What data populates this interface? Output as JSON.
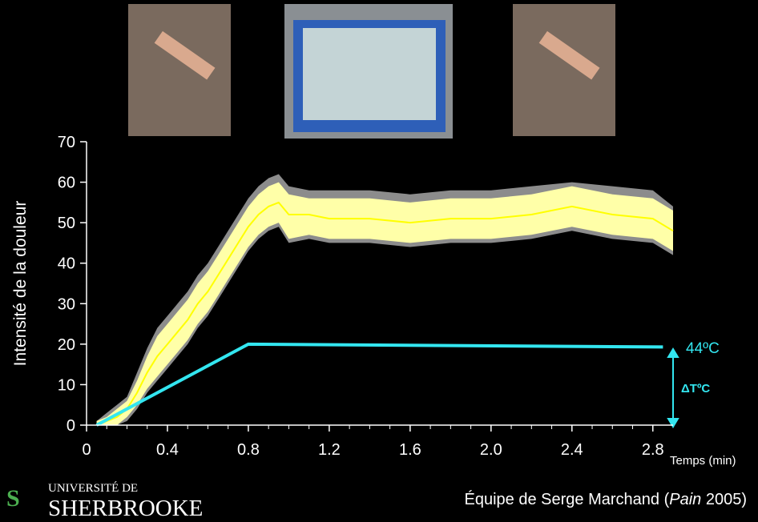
{
  "chart_data": {
    "type": "line",
    "y_label": "Intensité de la douleur",
    "x_label": "Temps (min)",
    "x": [
      0.05,
      0.1,
      0.15,
      0.2,
      0.25,
      0.3,
      0.35,
      0.4,
      0.45,
      0.5,
      0.55,
      0.6,
      0.65,
      0.7,
      0.75,
      0.8,
      0.85,
      0.9,
      0.95,
      1.0,
      1.1,
      1.2,
      1.4,
      1.6,
      1.8,
      2.0,
      2.2,
      2.4,
      2.6,
      2.8,
      2.9
    ],
    "bands": [
      {
        "color": "#8c8c8c",
        "upper": [
          1,
          3,
          5,
          7,
          13,
          19,
          24,
          27,
          30,
          33,
          37,
          40,
          44,
          48,
          52,
          56,
          59,
          61,
          62,
          59,
          58,
          58,
          58,
          57,
          58,
          58,
          59,
          60,
          59,
          58,
          54
        ],
        "lower": [
          0,
          0,
          0,
          1,
          4,
          8,
          11,
          14,
          17,
          20,
          24,
          27,
          31,
          35,
          39,
          43,
          46,
          48,
          49,
          45,
          46,
          45,
          45,
          44,
          45,
          45,
          46,
          48,
          46,
          45,
          42
        ]
      },
      {
        "color": "#ffffa8",
        "upper": [
          1,
          2,
          4,
          6,
          11,
          17,
          22,
          25,
          28,
          31,
          35,
          38,
          42,
          46,
          50,
          54,
          57,
          59,
          60,
          57,
          56,
          56,
          56,
          55,
          56,
          56,
          57,
          59,
          57,
          56,
          53
        ],
        "lower": [
          0,
          0,
          0,
          2,
          5,
          9,
          12,
          15,
          18,
          21,
          25,
          28,
          32,
          36,
          40,
          44,
          47,
          49,
          50,
          46,
          47,
          46,
          46,
          45,
          46,
          46,
          47,
          49,
          47,
          46,
          43
        ]
      }
    ],
    "series": [
      {
        "color": "#ffff00",
        "values": [
          0,
          1,
          2,
          4,
          8,
          13,
          17,
          20,
          23,
          26,
          30,
          33,
          37,
          41,
          45,
          49,
          52,
          54,
          55,
          52,
          52,
          51,
          51,
          50,
          51,
          51,
          52,
          54,
          52,
          51,
          48
        ]
      },
      {
        "color": "#33e6f0",
        "x": [
          0.05,
          0.8,
          2.85
        ],
        "values": [
          0,
          20,
          19.3
        ]
      }
    ],
    "xlim": [
      0,
      2.9
    ],
    "ylim": [
      0,
      70
    ],
    "xticks": [
      0,
      0.4,
      0.8,
      1.2,
      1.6,
      {
        "value": 2,
        "label": "2.0"
      },
      2.4,
      2.8
    ],
    "xminorticks": [
      0.1,
      0.2,
      0.3,
      0.5,
      0.6,
      0.7,
      0.9,
      1.0,
      1.1,
      1.3,
      1.4,
      1.5,
      1.7,
      1.8,
      1.9,
      2.1,
      2.2,
      2.3,
      2.5,
      2.6,
      2.7
    ],
    "yticks": [
      0,
      10,
      20,
      30,
      40,
      50,
      60,
      70
    ],
    "annotations": {
      "temperature": "44ºC",
      "delta": "ΔTºC"
    }
  },
  "logo": {
    "line1": "UNIVERSITÉ DE",
    "line2": "SHERBROOKE"
  },
  "footer": {
    "prefix": "Équipe de Serge Marchand (",
    "journal": "Pain",
    "suffix": " 2005)"
  }
}
